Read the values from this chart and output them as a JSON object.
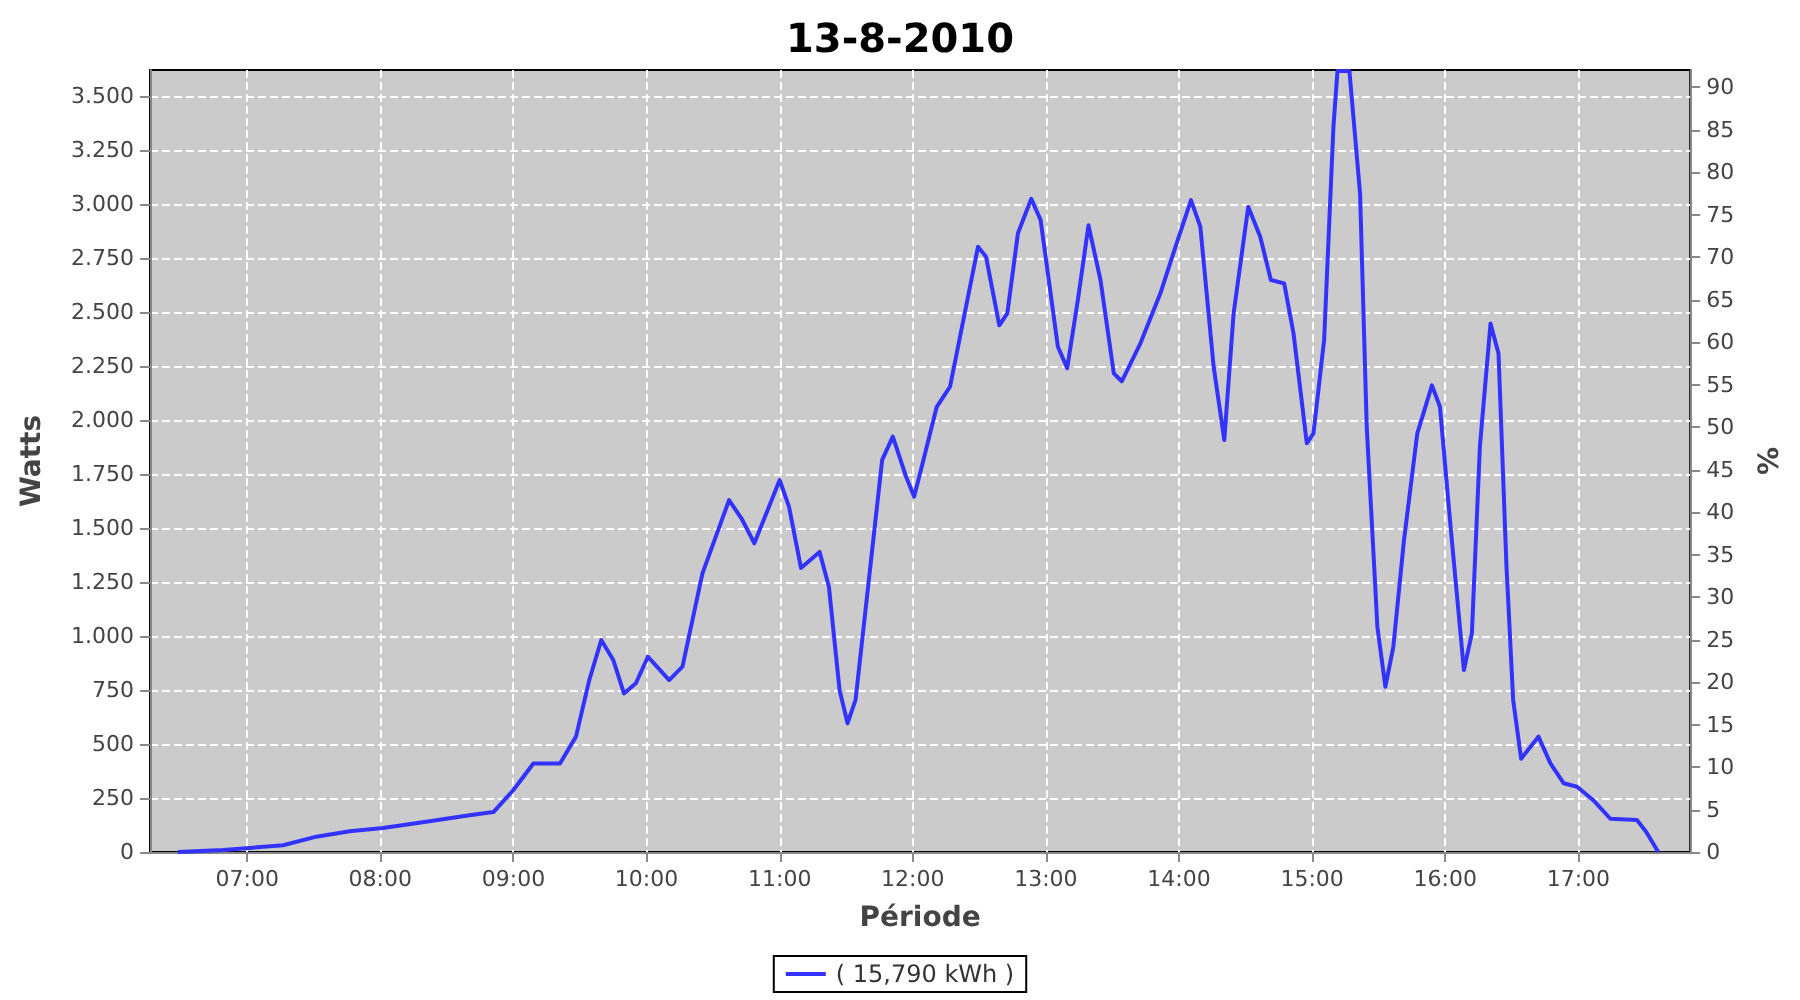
{
  "chart_data": {
    "type": "line",
    "title": "13-8-2010",
    "xlabel": "Période",
    "ylabel": "Watts",
    "y2label": "%",
    "x": [
      6.48,
      6.82,
      7.27,
      7.52,
      7.77,
      8.02,
      8.37,
      8.67,
      8.85,
      9.0,
      9.15,
      9.35,
      9.47,
      9.57,
      9.66,
      9.75,
      9.83,
      9.92,
      10.01,
      10.17,
      10.27,
      10.42,
      10.62,
      10.72,
      10.81,
      11.0,
      11.07,
      11.16,
      11.3,
      11.37,
      11.45,
      11.51,
      11.57,
      11.67,
      11.77,
      11.85,
      11.95,
      12.01,
      12.08,
      12.18,
      12.28,
      12.36,
      12.49,
      12.55,
      12.65,
      12.71,
      12.79,
      12.89,
      12.96,
      13.09,
      13.16,
      13.24,
      13.32,
      13.41,
      13.51,
      13.57,
      13.71,
      13.86,
      13.99,
      14.09,
      14.16,
      14.26,
      14.34,
      14.41,
      14.52,
      14.61,
      14.69,
      14.79,
      14.86,
      14.96,
      15.01,
      15.09,
      15.16,
      15.19,
      15.28,
      15.36,
      15.41,
      15.49,
      15.55,
      15.61,
      15.69,
      15.79,
      15.9,
      15.96,
      16.04,
      16.14,
      16.2,
      16.26,
      16.34,
      16.4,
      16.46,
      16.51,
      16.57,
      16.7,
      16.79,
      16.89,
      16.99,
      17.11,
      17.24,
      17.44,
      17.51,
      17.6
    ],
    "series": [
      {
        "name": "( 15,790 kWh )",
        "color": "#3333ff",
        "values": [
          0,
          9,
          31,
          71,
          96,
          111,
          142,
          170,
          185,
          287,
          410,
          410,
          534,
          796,
          981,
          889,
          734,
          781,
          904,
          796,
          858,
          1290,
          1629,
          1537,
          1429,
          1722,
          1599,
          1315,
          1389,
          1228,
          750,
          596,
          704,
          1259,
          1815,
          1923,
          1737,
          1645,
          1815,
          2061,
          2154,
          2401,
          2802,
          2756,
          2438,
          2493,
          2864,
          3024,
          2926,
          2339,
          2240,
          2555,
          2901,
          2648,
          2216,
          2179,
          2355,
          2586,
          2833,
          3018,
          2895,
          2247,
          1907,
          2493,
          2987,
          2848,
          2648,
          2632,
          2401,
          1892,
          1938,
          2370,
          3358,
          3615,
          3615,
          3049,
          1969,
          1043,
          765,
          950,
          1444,
          1938,
          2160,
          2061,
          1506,
          842,
          1012,
          1876,
          2447,
          2308,
          1321,
          704,
          432,
          534,
          410,
          318,
          302,
          241,
          154,
          148,
          93,
          0
        ]
      }
    ],
    "xlim": [
      6.27,
      17.84
    ],
    "xticks": [
      {
        "value": 7,
        "label": "07:00"
      },
      {
        "value": 8,
        "label": "08:00"
      },
      {
        "value": 9,
        "label": "09:00"
      },
      {
        "value": 10,
        "label": "10:00"
      },
      {
        "value": 11,
        "label": "11:00"
      },
      {
        "value": 12,
        "label": "12:00"
      },
      {
        "value": 13,
        "label": "13:00"
      },
      {
        "value": 14,
        "label": "14:00"
      },
      {
        "value": 15,
        "label": "15:00"
      },
      {
        "value": 16,
        "label": "16:00"
      },
      {
        "value": 17,
        "label": "17:00"
      }
    ],
    "ylim": [
      0,
      3620
    ],
    "yticks": [
      0,
      250,
      500,
      750,
      {
        "value": 1000,
        "label": "1.000"
      },
      {
        "value": 1250,
        "label": "1.250"
      },
      {
        "value": 1500,
        "label": "1.500"
      },
      {
        "value": 1750,
        "label": "1.750"
      },
      {
        "value": 2000,
        "label": "2.000"
      },
      {
        "value": 2250,
        "label": "2.250"
      },
      {
        "value": 2500,
        "label": "2.500"
      },
      {
        "value": 2750,
        "label": "2.750"
      },
      {
        "value": 3000,
        "label": "3.000"
      },
      {
        "value": 3250,
        "label": "3.250"
      },
      {
        "value": 3500,
        "label": "3.500"
      }
    ],
    "y2lim": [
      0,
      92
    ],
    "y2ticks": [
      0,
      5,
      10,
      15,
      20,
      25,
      30,
      35,
      40,
      45,
      50,
      55,
      60,
      65,
      70,
      75,
      80,
      85,
      90
    ],
    "grid": true,
    "legend": "bottom",
    "marker": "none",
    "line_style": "solid"
  }
}
